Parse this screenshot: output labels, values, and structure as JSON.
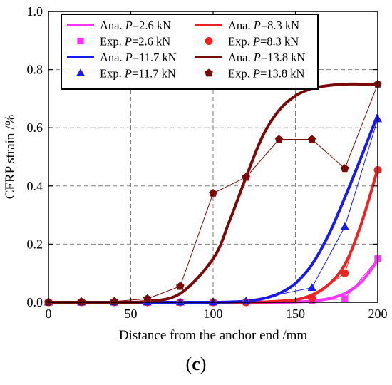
{
  "panel_label": {
    "open": "(",
    "letter": "c",
    "close": ")"
  },
  "chart_data": {
    "type": "line",
    "title": "",
    "xlabel": "Distance from the anchor end /mm",
    "ylabel": "CFRP strain /%",
    "xlim": [
      0,
      200
    ],
    "ylim": [
      0,
      1.0
    ],
    "x_ticks": [
      0,
      50,
      100,
      150,
      200
    ],
    "x_tick_labels": [
      "0",
      "50",
      "100",
      "150",
      "200"
    ],
    "y_ticks": [
      0,
      0.2,
      0.4,
      0.6,
      0.8,
      1.0
    ],
    "y_tick_labels": [
      "0.0",
      "0.2",
      "0.4",
      "0.6",
      "0.8",
      "1.0"
    ],
    "grid": true,
    "grid_style": "dashed",
    "legend_placement": "top-left",
    "legend": [
      {
        "prefix": "Ana. ",
        "var": "P",
        "suffix": "=2.6 kN",
        "color": "#ff33ff",
        "style": "line"
      },
      {
        "prefix": "Ana. ",
        "var": "P",
        "suffix": "=8.3 kN",
        "color": "#ee2222",
        "style": "line"
      },
      {
        "prefix": "Exp. ",
        "var": "P",
        "suffix": "=2.6 kN",
        "color": "#ff33ff",
        "style": "square"
      },
      {
        "prefix": "Exp. ",
        "var": "P",
        "suffix": "=8.3 kN",
        "color": "#ee2222",
        "style": "circle"
      },
      {
        "prefix": "Ana. ",
        "var": "P",
        "suffix": "=11.7 kN",
        "color": "#1a1aee",
        "style": "line"
      },
      {
        "prefix": "Ana. ",
        "var": "P",
        "suffix": "=13.8 kN",
        "color": "#7a0a0a",
        "style": "line"
      },
      {
        "prefix": "Exp. ",
        "var": "P",
        "suffix": "=11.7 kN",
        "color": "#1a1aee",
        "style": "triangle"
      },
      {
        "prefix": "Exp. ",
        "var": "P",
        "suffix": "=13.8 kN",
        "color": "#7a0a0a",
        "style": "pentagon"
      }
    ],
    "analytical_x": [
      0,
      20,
      40,
      60,
      80,
      100,
      110,
      120,
      130,
      140,
      150,
      160,
      170,
      180,
      190,
      200
    ],
    "series": [
      {
        "name": "Ana. P=2.6 kN",
        "kind": "analytical",
        "color": "#ff33ff",
        "y": [
          0,
          0,
          0,
          0,
          0,
          0,
          0,
          0,
          0,
          0,
          0.001,
          0.004,
          0.012,
          0.03,
          0.07,
          0.145
        ]
      },
      {
        "name": "Ana. P=8.3 kN",
        "kind": "analytical",
        "color": "#ee2222",
        "y": [
          0,
          0,
          0,
          0,
          0,
          0,
          0,
          0,
          0.001,
          0.003,
          0.008,
          0.025,
          0.06,
          0.13,
          0.27,
          0.46
        ]
      },
      {
        "name": "Ana. P=11.7 kN",
        "kind": "analytical",
        "color": "#1a1aee",
        "y": [
          0,
          0,
          0,
          0,
          0,
          0,
          0.001,
          0.004,
          0.012,
          0.03,
          0.065,
          0.13,
          0.23,
          0.36,
          0.5,
          0.645
        ]
      },
      {
        "name": "Ana. P=13.8 kN",
        "kind": "analytical",
        "color": "#7a0a0a",
        "y": [
          0,
          0,
          0,
          0.003,
          0.03,
          0.15,
          0.28,
          0.43,
          0.57,
          0.66,
          0.71,
          0.735,
          0.745,
          0.75,
          0.75,
          0.75
        ]
      },
      {
        "name": "Exp. P=2.6 kN",
        "kind": "experimental",
        "marker": "square",
        "color": "#ff33ff",
        "x": [
          0,
          20,
          40,
          60,
          80,
          100,
          120,
          160,
          180,
          200
        ],
        "y": [
          0,
          0,
          0,
          0,
          0,
          0,
          0,
          0.005,
          0.012,
          0.15
        ]
      },
      {
        "name": "Exp. P=8.3 kN",
        "kind": "experimental",
        "marker": "circle",
        "color": "#ee2222",
        "x": [
          0,
          20,
          40,
          60,
          80,
          100,
          120,
          160,
          180,
          200
        ],
        "y": [
          0,
          0,
          0,
          0,
          0,
          0,
          0,
          0.015,
          0.1,
          0.455
        ]
      },
      {
        "name": "Exp. P=11.7 kN",
        "kind": "experimental",
        "marker": "triangle",
        "color": "#1a1aee",
        "x": [
          0,
          20,
          40,
          60,
          80,
          100,
          120,
          160,
          180,
          200
        ],
        "y": [
          0,
          0,
          0,
          0,
          0,
          0,
          0.004,
          0.05,
          0.26,
          0.63
        ]
      },
      {
        "name": "Exp. P=13.8 kN",
        "kind": "experimental",
        "marker": "pentagon",
        "color": "#7a0a0a",
        "x": [
          0,
          20,
          40,
          60,
          80,
          100,
          120,
          140,
          160,
          180,
          200
        ],
        "y": [
          0,
          0.002,
          0.003,
          0.012,
          0.055,
          0.375,
          0.43,
          0.56,
          0.56,
          0.46,
          0.75
        ]
      }
    ]
  }
}
